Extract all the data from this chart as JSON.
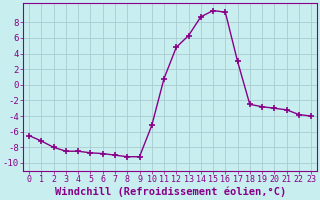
{
  "x": [
    0,
    1,
    2,
    3,
    4,
    5,
    6,
    7,
    8,
    9,
    10,
    11,
    12,
    13,
    14,
    15,
    16,
    17,
    18,
    19,
    20,
    21,
    22,
    23
  ],
  "y": [
    -6.5,
    -7.2,
    -8.0,
    -8.5,
    -8.5,
    -8.7,
    -8.8,
    -9.0,
    -9.2,
    -9.2,
    -5.2,
    0.8,
    4.8,
    6.3,
    8.7,
    9.5,
    9.3,
    3.0,
    -2.5,
    -2.8,
    -3.0,
    -3.2,
    -3.8,
    -4.0
  ],
  "line_color": "#880088",
  "marker": "+",
  "marker_size": 4,
  "marker_lw": 1.2,
  "bg_color": "#c8eef0",
  "grid_color": "#aaccd0",
  "xlabel": "Windchill (Refroidissement éolien,°C)",
  "ylabel": "",
  "xlim": [
    -0.5,
    23.5
  ],
  "ylim": [
    -11,
    10.5
  ],
  "yticks": [
    -10,
    -8,
    -6,
    -4,
    -2,
    0,
    2,
    4,
    6,
    8
  ],
  "xticks": [
    0,
    1,
    2,
    3,
    4,
    5,
    6,
    7,
    8,
    9,
    10,
    11,
    12,
    13,
    14,
    15,
    16,
    17,
    18,
    19,
    20,
    21,
    22,
    23
  ],
  "axis_color": "#880088",
  "tick_color": "#880088",
  "tick_fontsize": 6,
  "xlabel_fontsize": 7.5
}
